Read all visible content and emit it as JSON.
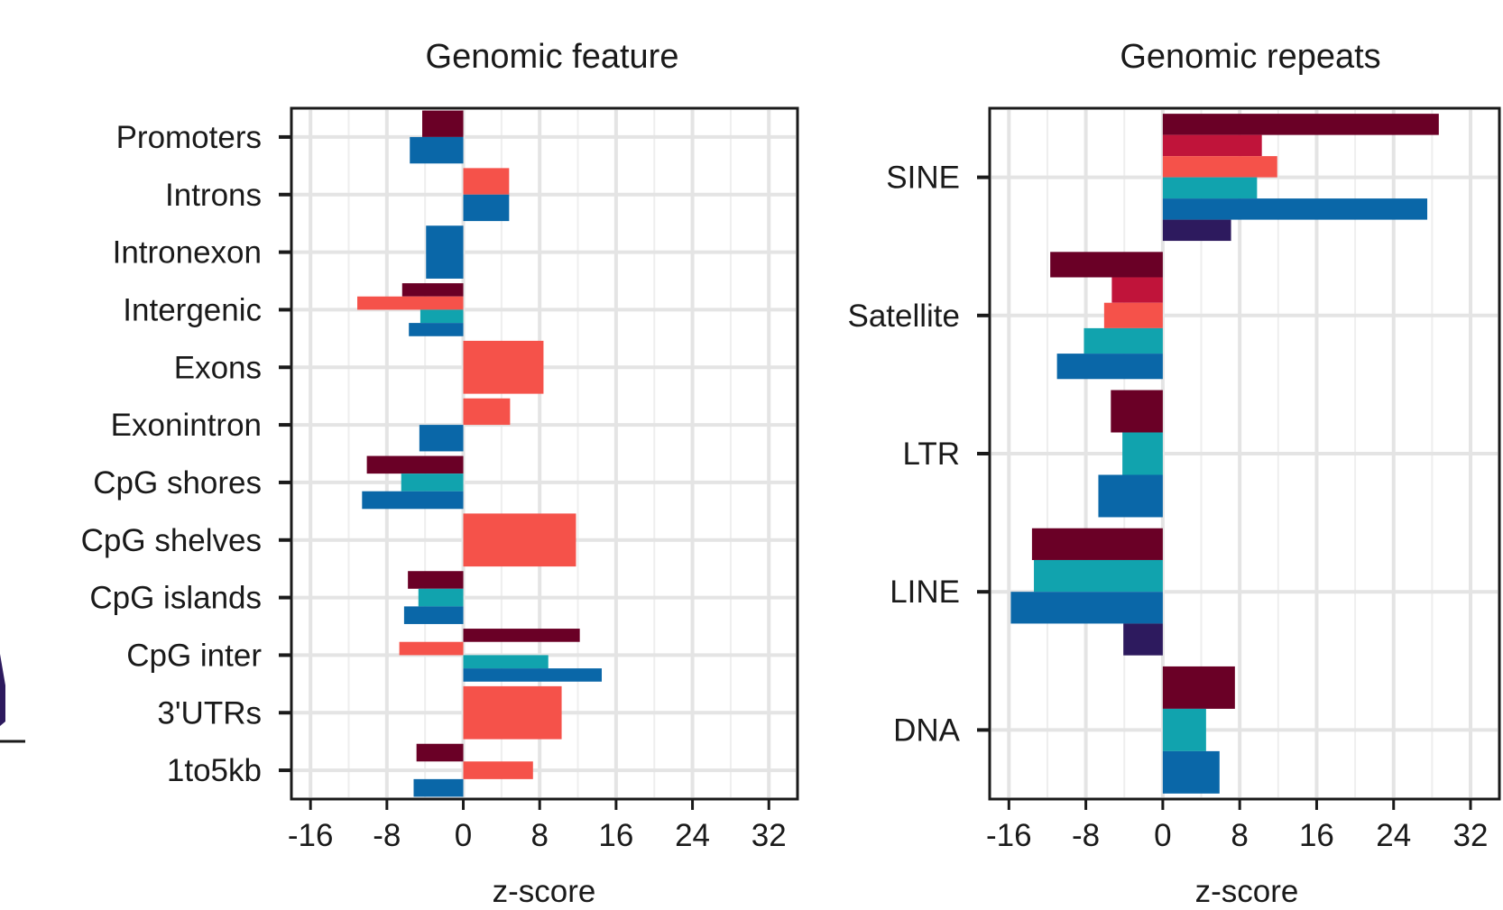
{
  "colors": {
    "maroon": "#6a0026",
    "crimson": "#c0143a",
    "coral": "#f5524a",
    "teal": "#11a3ae",
    "blue": "#0a67a8",
    "navy": "#2d1a5e"
  },
  "chart_data": [
    {
      "type": "bar",
      "orientation": "horizontal",
      "title": "Genomic feature",
      "xlabel": "z-score",
      "ylabel": "",
      "xlim": [
        -18,
        35
      ],
      "xticks": [
        -16,
        -8,
        0,
        8,
        16,
        24,
        32
      ],
      "xtick_labels": [
        "-16",
        "-8",
        "0",
        "8",
        "16",
        "24",
        "32"
      ],
      "grid": true,
      "categories": [
        "Promoters",
        "Introns",
        "Intronexon",
        "Intergenic",
        "Exons",
        "Exonintron",
        "CpG shores",
        "CpG shelves",
        "CpG islands",
        "CpG inter",
        "3'UTRs",
        "1to5kb"
      ],
      "groups": [
        {
          "category": "Promoters",
          "bars": [
            {
              "color": "maroon",
              "value": -4.3
            },
            {
              "color": "blue",
              "value": -5.6
            }
          ]
        },
        {
          "category": "Introns",
          "bars": [
            {
              "color": "coral",
              "value": 4.8
            },
            {
              "color": "blue",
              "value": 4.8
            }
          ]
        },
        {
          "category": "Intronexon",
          "bars": [
            {
              "color": "blue",
              "value": -3.9
            }
          ]
        },
        {
          "category": "Intergenic",
          "bars": [
            {
              "color": "maroon",
              "value": -6.4
            },
            {
              "color": "coral",
              "value": -11.1
            },
            {
              "color": "teal",
              "value": -4.5
            },
            {
              "color": "blue",
              "value": -5.7
            }
          ]
        },
        {
          "category": "Exons",
          "bars": [
            {
              "color": "coral",
              "value": 8.4
            }
          ]
        },
        {
          "category": "Exonintron",
          "bars": [
            {
              "color": "coral",
              "value": 4.9
            },
            {
              "color": "blue",
              "value": -4.6
            }
          ]
        },
        {
          "category": "CpG shores",
          "bars": [
            {
              "color": "maroon",
              "value": -10.1
            },
            {
              "color": "teal",
              "value": -6.5
            },
            {
              "color": "blue",
              "value": -10.6
            }
          ]
        },
        {
          "category": "CpG shelves",
          "bars": [
            {
              "color": "coral",
              "value": 11.8
            }
          ]
        },
        {
          "category": "CpG islands",
          "bars": [
            {
              "color": "maroon",
              "value": -5.8
            },
            {
              "color": "teal",
              "value": -4.7
            },
            {
              "color": "blue",
              "value": -6.2
            }
          ]
        },
        {
          "category": "CpG inter",
          "bars": [
            {
              "color": "maroon",
              "value": 12.2
            },
            {
              "color": "coral",
              "value": -6.7
            },
            {
              "color": "teal",
              "value": 8.9
            },
            {
              "color": "blue",
              "value": 14.5
            }
          ]
        },
        {
          "category": "3'UTRs",
          "bars": [
            {
              "color": "coral",
              "value": 10.3
            }
          ]
        },
        {
          "category": "1to5kb",
          "bars": [
            {
              "color": "maroon",
              "value": -4.9
            },
            {
              "color": "coral",
              "value": 7.3
            },
            {
              "color": "blue",
              "value": -5.2
            }
          ]
        }
      ]
    },
    {
      "type": "bar",
      "orientation": "horizontal",
      "title": "Genomic repeats",
      "xlabel": "z-score",
      "ylabel": "",
      "xlim": [
        -18,
        35
      ],
      "xticks": [
        -16,
        -8,
        0,
        8,
        16,
        24,
        32
      ],
      "xtick_labels": [
        "-16",
        "-8",
        "0",
        "8",
        "16",
        "24",
        "32"
      ],
      "grid": true,
      "categories": [
        "SINE",
        "Satellite",
        "LTR",
        "LINE",
        "DNA"
      ],
      "groups": [
        {
          "category": "SINE",
          "bars": [
            {
              "color": "maroon",
              "value": 28.7
            },
            {
              "color": "crimson",
              "value": 10.3
            },
            {
              "color": "coral",
              "value": 11.9
            },
            {
              "color": "teal",
              "value": 9.8
            },
            {
              "color": "blue",
              "value": 27.5
            },
            {
              "color": "navy",
              "value": 7.1
            }
          ]
        },
        {
          "category": "Satellite",
          "bars": [
            {
              "color": "maroon",
              "value": -11.7
            },
            {
              "color": "crimson",
              "value": -5.3
            },
            {
              "color": "coral",
              "value": -6.1
            },
            {
              "color": "teal",
              "value": -8.2
            },
            {
              "color": "blue",
              "value": -11.0
            }
          ]
        },
        {
          "category": "LTR",
          "bars": [
            {
              "color": "maroon",
              "value": -5.4
            },
            {
              "color": "teal",
              "value": -4.2
            },
            {
              "color": "blue",
              "value": -6.7
            }
          ]
        },
        {
          "category": "LINE",
          "bars": [
            {
              "color": "maroon",
              "value": -13.6
            },
            {
              "color": "teal",
              "value": -13.4
            },
            {
              "color": "blue",
              "value": -15.8
            },
            {
              "color": "navy",
              "value": -4.1
            }
          ]
        },
        {
          "category": "DNA",
          "bars": [
            {
              "color": "maroon",
              "value": 7.5
            },
            {
              "color": "teal",
              "value": 4.5
            },
            {
              "color": "blue",
              "value": 5.9
            }
          ]
        }
      ]
    }
  ]
}
